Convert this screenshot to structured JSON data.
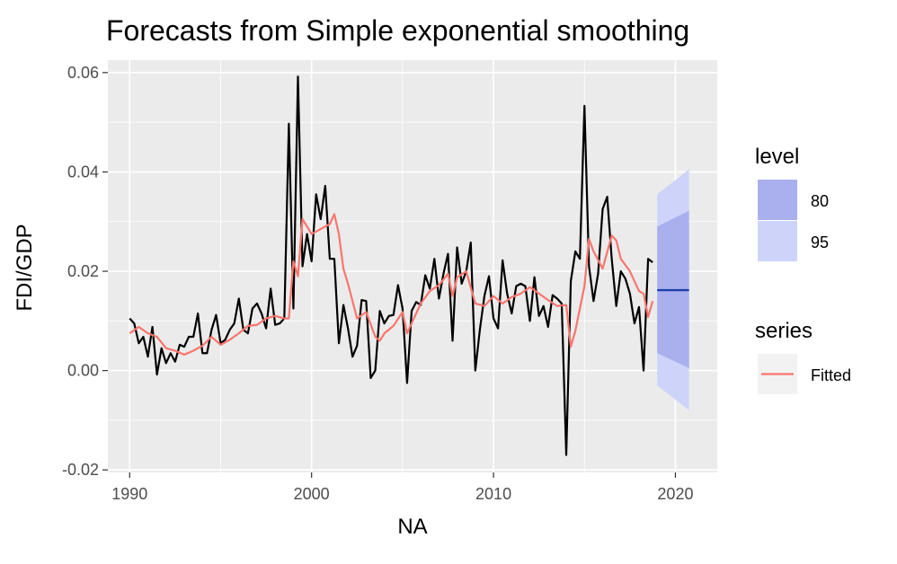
{
  "chart_data": {
    "type": "line",
    "title": "Forecasts from Simple exponential smoothing",
    "xlabel": "NA",
    "ylabel": "FDI/GDP",
    "xlim": [
      1988.8,
      2022.3
    ],
    "ylim": [
      -0.0205,
      0.0625
    ],
    "x_ticks": [
      1990,
      2000,
      2010,
      2020
    ],
    "x_tick_labels": [
      "1990",
      "2000",
      "2010",
      "2020"
    ],
    "y_ticks": [
      -0.02,
      0.0,
      0.02,
      0.04,
      0.06
    ],
    "y_tick_labels": [
      "-0.02",
      "0.00",
      "0.02",
      "0.04",
      "0.06"
    ],
    "grid": true,
    "legend_position": "right",
    "legends": [
      {
        "title": "level",
        "entries": [
          {
            "label": "80",
            "color": "#aab0ee"
          },
          {
            "label": "95",
            "color": "#ced4f9"
          }
        ]
      },
      {
        "title": "series",
        "entries": [
          {
            "label": "Fitted",
            "color": "#f8766d"
          }
        ]
      }
    ],
    "colors": {
      "actual": "#000000",
      "fitted": "#f8766d",
      "forecast": "#1f3fa8",
      "band80": "#aab0ee",
      "band95": "#ced4f9",
      "panel": "#ebebeb"
    },
    "series": [
      {
        "role": "actual",
        "x": [
          1990.0,
          1990.25,
          1990.5,
          1990.75,
          1991.0,
          1991.25,
          1991.5,
          1991.75,
          1992.0,
          1992.25,
          1992.5,
          1992.75,
          1993.0,
          1993.25,
          1993.5,
          1993.75,
          1994.0,
          1994.25,
          1994.5,
          1994.75,
          1995.0,
          1995.25,
          1995.5,
          1995.75,
          1996.0,
          1996.25,
          1996.5,
          1996.75,
          1997.0,
          1997.25,
          1997.5,
          1997.75,
          1998.0,
          1998.25,
          1998.5,
          1998.75,
          1999.0,
          1999.25,
          1999.5,
          1999.75,
          2000.0,
          2000.25,
          2000.5,
          2000.75,
          2001.0,
          2001.25,
          2001.5,
          2001.75,
          2002.0,
          2002.25,
          2002.5,
          2002.75,
          2003.0,
          2003.25,
          2003.5,
          2003.75,
          2004.0,
          2004.25,
          2004.5,
          2004.75,
          2005.0,
          2005.25,
          2005.5,
          2005.75,
          2006.0,
          2006.25,
          2006.5,
          2006.75,
          2007.0,
          2007.25,
          2007.5,
          2007.75,
          2008.0,
          2008.25,
          2008.5,
          2008.75,
          2009.0,
          2009.25,
          2009.5,
          2009.75,
          2010.0,
          2010.25,
          2010.5,
          2010.75,
          2011.0,
          2011.25,
          2011.5,
          2011.75,
          2012.0,
          2012.25,
          2012.5,
          2012.75,
          2013.0,
          2013.25,
          2013.5,
          2013.75,
          2014.0,
          2014.25,
          2014.5,
          2014.75,
          2015.0,
          2015.25,
          2015.5,
          2015.75,
          2016.0,
          2016.25,
          2016.5,
          2016.75,
          2017.0,
          2017.25,
          2017.5,
          2017.75,
          2018.0,
          2018.25,
          2018.5,
          2018.75
        ],
        "values": [
          0.0105,
          0.0095,
          0.0055,
          0.0068,
          0.0028,
          0.0088,
          -0.0008,
          0.0045,
          0.0015,
          0.0035,
          0.0018,
          0.0052,
          0.0048,
          0.0068,
          0.0068,
          0.0115,
          0.0035,
          0.0035,
          0.0082,
          0.0112,
          0.0055,
          0.0062,
          0.0082,
          0.0095,
          0.0145,
          0.0082,
          0.0075,
          0.0125,
          0.0135,
          0.0115,
          0.0085,
          0.0165,
          0.0092,
          0.0095,
          0.0105,
          0.0497,
          0.0125,
          0.0592,
          0.021,
          0.0275,
          0.022,
          0.0355,
          0.0305,
          0.0372,
          0.0225,
          0.0225,
          0.0055,
          0.0132,
          0.0085,
          0.0028,
          0.005,
          0.0142,
          0.014,
          -0.0015,
          0.0,
          0.012,
          0.0095,
          0.011,
          0.0112,
          0.0172,
          0.0125,
          -0.0025,
          0.012,
          0.0138,
          0.0132,
          0.0192,
          0.0165,
          0.0225,
          0.0145,
          0.0195,
          0.0235,
          0.006,
          0.0248,
          0.0175,
          0.02,
          0.0258,
          0.0,
          0.0082,
          0.015,
          0.019,
          0.0105,
          0.0085,
          0.0222,
          0.0155,
          0.0115,
          0.017,
          0.0175,
          0.017,
          0.01,
          0.0188,
          0.011,
          0.013,
          0.0088,
          0.0152,
          0.0145,
          0.0135,
          -0.017,
          0.018,
          0.024,
          0.0225,
          0.0533,
          0.021,
          0.014,
          0.0195,
          0.0325,
          0.035,
          0.0225,
          0.013,
          0.02,
          0.0185,
          0.0155,
          0.0095,
          0.0128,
          0.0,
          0.0225,
          0.0218
        ]
      },
      {
        "role": "fitted",
        "name": "Fitted",
        "x": [
          1990.0,
          1990.5,
          1991.0,
          1991.5,
          1992.0,
          1992.5,
          1993.0,
          1993.5,
          1994.0,
          1994.5,
          1995.0,
          1995.5,
          1996.0,
          1996.5,
          1997.0,
          1997.5,
          1998.0,
          1998.5,
          1998.75,
          1999.0,
          1999.25,
          1999.5,
          2000.0,
          2000.5,
          2001.0,
          2001.25,
          2001.5,
          2001.75,
          2002.0,
          2002.5,
          2003.0,
          2003.5,
          2003.75,
          2004.0,
          2004.5,
          2005.0,
          2005.25,
          2005.5,
          2006.0,
          2006.5,
          2007.0,
          2007.5,
          2007.75,
          2008.0,
          2008.5,
          2009.0,
          2009.5,
          2010.0,
          2010.5,
          2011.0,
          2011.5,
          2012.0,
          2012.5,
          2013.0,
          2013.5,
          2014.0,
          2014.25,
          2014.5,
          2015.0,
          2015.25,
          2015.5,
          2016.0,
          2016.5,
          2016.75,
          2017.0,
          2017.5,
          2018.0,
          2018.25,
          2018.5,
          2018.75
        ],
        "values": [
          0.0075,
          0.0088,
          0.0075,
          0.0068,
          0.0045,
          0.004,
          0.0032,
          0.004,
          0.005,
          0.0068,
          0.0052,
          0.0062,
          0.0075,
          0.009,
          0.0092,
          0.0105,
          0.011,
          0.0105,
          0.0105,
          0.022,
          0.019,
          0.0305,
          0.0275,
          0.0285,
          0.0295,
          0.0315,
          0.0275,
          0.0205,
          0.0175,
          0.0105,
          0.0118,
          0.0068,
          0.006,
          0.0075,
          0.009,
          0.0118,
          0.0075,
          0.0095,
          0.0135,
          0.016,
          0.0172,
          0.0195,
          0.015,
          0.0188,
          0.02,
          0.0135,
          0.013,
          0.015,
          0.0135,
          0.0148,
          0.0155,
          0.0168,
          0.0155,
          0.0142,
          0.013,
          0.0132,
          0.0048,
          0.008,
          0.017,
          0.0265,
          0.024,
          0.0205,
          0.0272,
          0.0262,
          0.0225,
          0.02,
          0.016,
          0.0155,
          0.0108,
          0.014
        ]
      },
      {
        "role": "forecast",
        "x": [
          2019.0,
          2020.75
        ],
        "values": [
          0.0162,
          0.0162
        ]
      }
    ],
    "intervals": [
      {
        "level": "95",
        "x": [
          2019.0,
          2020.75
        ],
        "lower": [
          -0.003,
          -0.008
        ],
        "upper": [
          0.0355,
          0.0405
        ]
      },
      {
        "level": "80",
        "x": [
          2019.0,
          2020.75
        ],
        "lower": [
          0.0035,
          0.0005
        ],
        "upper": [
          0.029,
          0.0322
        ]
      }
    ]
  }
}
